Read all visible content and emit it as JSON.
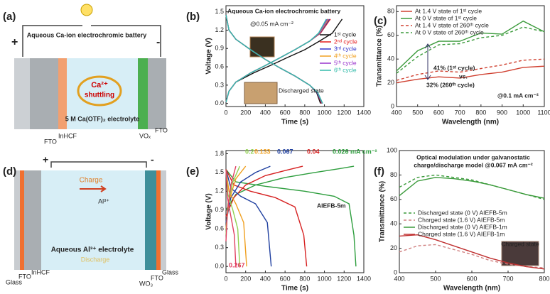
{
  "panel_labels": [
    "(a)",
    "(b)",
    "(c)",
    "(d)",
    "(e)",
    "(f)"
  ],
  "diagrams": {
    "a": {
      "title": "Aqueous Ca-ion electrochromic battery",
      "plus": "+",
      "minus": "-",
      "ion": "Ca²⁺",
      "motion": "shuttling",
      "electrolyte": "5 M Ca(OTF)₂ electrolyte",
      "layers": [
        "FTO",
        "InHCF",
        "VOₓ",
        "FTO"
      ]
    },
    "d": {
      "plus": "+",
      "minus": "-",
      "charge": "Charge",
      "ion": "Al³⁺",
      "electrolyte": "Aqueous Al³⁺ electrolyte",
      "discharge": "Discharge",
      "layers": [
        "Glass",
        "FTO",
        "InHCF",
        "WO₃",
        "FTO",
        "Glass"
      ]
    }
  },
  "chart_data": [
    {
      "type": "line",
      "x_label": "Time (s)",
      "y_label": "Voltage (V)",
      "xlim": [
        0,
        1400
      ],
      "xticks": [
        0,
        200,
        400,
        600,
        800,
        1000,
        1200,
        1400
      ],
      "ylim": [
        -0.05,
        1.6
      ],
      "yticks": [
        {
          "value": 0,
          "label": "0.0"
        },
        0.3,
        0.6,
        0.9,
        1.2,
        1.5
      ],
      "legend": "center-right",
      "annotations": [
        "Aqueous Ca-ion electrochromic battery",
        "@0.05 mA cm⁻²",
        "Discharged state"
      ],
      "series": [
        {
          "name": "1ˢᵗ cycle",
          "color": "#111111",
          "charge": {
            "x": [
              0,
              30,
              100,
              280,
              450,
              620,
              800,
              950,
              1080,
              1180
            ],
            "values": [
              0.02,
              0.2,
              0.35,
              0.5,
              0.62,
              0.75,
              0.88,
              1.02,
              1.15,
              1.38
            ]
          },
          "discharge": {
            "x": [
              0,
              30,
              100,
              250,
              400,
              550,
              700,
              850,
              920,
              960
            ],
            "values": [
              1.45,
              1.2,
              1.05,
              0.88,
              0.72,
              0.58,
              0.45,
              0.3,
              0.18,
              0.0
            ]
          }
        },
        {
          "name": "2ⁿᵈ cycle",
          "color": "#e41a1c",
          "charge": {
            "x": [
              0,
              30,
              100,
              250,
              400,
              550,
              700,
              850,
              960,
              1060
            ],
            "values": [
              0.02,
              0.2,
              0.35,
              0.5,
              0.62,
              0.75,
              0.88,
              1.02,
              1.15,
              1.38
            ]
          },
          "discharge": {
            "x": [
              0,
              30,
              100,
              250,
              400,
              550,
              700,
              850,
              925,
              970
            ],
            "values": [
              1.45,
              1.2,
              1.05,
              0.88,
              0.72,
              0.58,
              0.45,
              0.3,
              0.18,
              0.0
            ]
          }
        },
        {
          "name": "3ʳᵈ cycle",
          "color": "#3333cc",
          "charge": {
            "x": [
              0,
              30,
              100,
              250,
              400,
              550,
              700,
              850,
              955,
              1050
            ],
            "values": [
              0.02,
              0.2,
              0.35,
              0.5,
              0.62,
              0.75,
              0.88,
              1.02,
              1.15,
              1.38
            ]
          },
          "discharge": {
            "x": [
              0,
              30,
              100,
              250,
              400,
              550,
              700,
              850,
              925,
              975
            ],
            "values": [
              1.45,
              1.2,
              1.05,
              0.88,
              0.72,
              0.58,
              0.45,
              0.3,
              0.18,
              0.0
            ]
          }
        },
        {
          "name": "4ᵗʰ cycle",
          "color": "#f0a020",
          "charge": {
            "x": [
              0,
              30,
              100,
              250,
              400,
              550,
              700,
              850,
              950,
              1040
            ],
            "values": [
              0.02,
              0.2,
              0.35,
              0.5,
              0.62,
              0.75,
              0.88,
              1.02,
              1.15,
              1.38
            ]
          },
          "discharge": {
            "x": [
              0,
              30,
              100,
              250,
              400,
              550,
              700,
              850,
              930,
              978
            ],
            "values": [
              1.45,
              1.2,
              1.05,
              0.88,
              0.72,
              0.58,
              0.45,
              0.3,
              0.18,
              0.0
            ]
          }
        },
        {
          "name": "5ᵗʰ cycle",
          "color": "#9933cc",
          "charge": {
            "x": [
              0,
              30,
              100,
              250,
              400,
              550,
              700,
              850,
              945,
              1030
            ],
            "values": [
              0.02,
              0.2,
              0.35,
              0.5,
              0.62,
              0.75,
              0.88,
              1.02,
              1.15,
              1.38
            ]
          },
          "discharge": {
            "x": [
              0,
              30,
              100,
              250,
              400,
              550,
              700,
              850,
              930,
              980
            ],
            "values": [
              1.45,
              1.2,
              1.05,
              0.88,
              0.72,
              0.58,
              0.45,
              0.3,
              0.18,
              0.0
            ]
          }
        },
        {
          "name": "6ᵗʰ cycle",
          "color": "#33bbaa",
          "charge": {
            "x": [
              0,
              30,
              100,
              250,
              400,
              550,
              700,
              850,
              940,
              1020
            ],
            "values": [
              0.02,
              0.2,
              0.35,
              0.5,
              0.62,
              0.75,
              0.88,
              1.02,
              1.15,
              1.38
            ]
          },
          "discharge": {
            "x": [
              0,
              30,
              100,
              250,
              400,
              550,
              700,
              850,
              932,
              982
            ],
            "values": [
              1.45,
              1.2,
              1.05,
              0.88,
              0.72,
              0.58,
              0.45,
              0.3,
              0.18,
              0.0
            ]
          }
        }
      ]
    },
    {
      "type": "line",
      "x_label": "Wavelength (nm)",
      "y_label": "Transmittance (%)",
      "xlim": [
        400,
        1100
      ],
      "xticks": [
        400,
        500,
        600,
        700,
        800,
        900,
        1000,
        1100
      ],
      "ylim": [
        0,
        85
      ],
      "yticks": [
        0,
        20,
        40,
        60,
        80
      ],
      "legend": "top-left",
      "annotations": [
        "41% (1ˢᵗ cycle)",
        "vs.",
        "32% (260ᵗʰ cycle)",
        "@0.1 mA cm⁻²"
      ],
      "x": [
        400,
        500,
        600,
        700,
        800,
        900,
        1000,
        1100
      ],
      "series": [
        {
          "name": "At 1.4 V state of 1ˢᵗ cycle",
          "color": "#d04030",
          "dash": false,
          "values": [
            20,
            23,
            25,
            24,
            27,
            29,
            33,
            34
          ]
        },
        {
          "name": "At 0 V state of 1ˢᵗ cycle",
          "color": "#3a9a3a",
          "dash": false,
          "values": [
            30,
            47,
            55,
            55,
            62,
            61,
            72,
            63
          ]
        },
        {
          "name": "At 1.4 V state of 260ᵗʰ cycle",
          "color": "#d04030",
          "dash": true,
          "values": [
            22,
            27,
            30,
            29,
            32,
            35,
            39,
            40
          ]
        },
        {
          "name": "At 0 V state of 260ᵗʰ cycle",
          "color": "#3a9a3a",
          "dash": true,
          "values": [
            28,
            42,
            52,
            53,
            58,
            60,
            67,
            63
          ]
        }
      ]
    },
    {
      "type": "line",
      "x_label": "Time (s)",
      "y_label": "Voltage (V)",
      "xlim": [
        0,
        1400
      ],
      "xticks": [
        0,
        200,
        400,
        600,
        800,
        1000,
        1200,
        1400
      ],
      "ylim": [
        -0.1,
        1.85
      ],
      "yticks": [
        {
          "value": 0,
          "label": "0.0"
        },
        0.3,
        0.6,
        0.9,
        1.2,
        1.5,
        1.8
      ],
      "legend": "inline",
      "annotations": [
        "AIEFB-5m"
      ],
      "series": [
        {
          "name": "0.026 mA cm⁻²",
          "color": "#2e9e3e",
          "charge": {
            "x": [
              0,
              100,
              300,
              600,
              900,
              1150,
              1300
            ],
            "values": [
              0.9,
              1.15,
              1.3,
              1.42,
              1.5,
              1.56,
              1.6
            ]
          },
          "discharge": {
            "x": [
              0,
              100,
              400,
              800,
              1100,
              1250,
              1300,
              1320
            ],
            "values": [
              1.55,
              1.35,
              1.28,
              1.2,
              1.12,
              1.0,
              0.5,
              0.0
            ]
          }
        },
        {
          "name": "0.04",
          "color": "#d62020",
          "charge": {
            "x": [
              0,
              80,
              200,
              400,
              600,
              780
            ],
            "values": [
              0.8,
              1.1,
              1.3,
              1.45,
              1.53,
              1.6
            ]
          },
          "discharge": {
            "x": [
              0,
              80,
              250,
              500,
              700,
              790,
              820
            ],
            "values": [
              1.55,
              1.3,
              1.2,
              1.1,
              0.95,
              0.5,
              0.0
            ]
          }
        },
        {
          "name": "0.067",
          "color": "#2040a0",
          "charge": {
            "x": [
              0,
              50,
              150,
              300,
              450
            ],
            "values": [
              0.7,
              1.1,
              1.35,
              1.5,
              1.6
            ]
          },
          "discharge": {
            "x": [
              0,
              50,
              150,
              300,
              420,
              460
            ],
            "values": [
              1.55,
              1.25,
              1.12,
              1.0,
              0.7,
              0.0
            ]
          }
        },
        {
          "name": "0.133",
          "color": "#f0a020",
          "charge": {
            "x": [
              0,
              30,
              100,
              200
            ],
            "values": [
              0.6,
              1.05,
              1.4,
              1.6
            ]
          },
          "discharge": {
            "x": [
              0,
              30,
              100,
              180,
              210
            ],
            "values": [
              1.55,
              1.2,
              1.0,
              0.7,
              0.0
            ]
          }
        },
        {
          "name": "0.2",
          "color": "#90d050",
          "charge": {
            "x": [
              0,
              20,
              70,
              140
            ],
            "values": [
              0.5,
              1.0,
              1.35,
              1.6
            ]
          },
          "discharge": {
            "x": [
              0,
              20,
              70,
              120,
              140
            ],
            "values": [
              1.55,
              1.15,
              0.9,
              0.6,
              0.0
            ]
          }
        },
        {
          "name": "0.267",
          "color": "#e04060",
          "charge": {
            "x": [
              0,
              15,
              50,
              100
            ],
            "values": [
              0.4,
              0.9,
              1.3,
              1.6
            ]
          },
          "discharge": {
            "x": [
              0,
              15,
              50,
              85,
              100
            ],
            "values": [
              1.55,
              1.1,
              0.8,
              0.5,
              0.0
            ]
          }
        }
      ]
    },
    {
      "type": "line",
      "x_label": "Wavelength (nm)",
      "y_label": "Transmittance (%)",
      "xlim": [
        400,
        800
      ],
      "xticks": [
        400,
        500,
        600,
        700,
        800
      ],
      "ylim": [
        0,
        100
      ],
      "yticks": [
        0,
        20,
        40,
        60,
        80,
        100
      ],
      "legend": "center-left",
      "annotations": [
        "Optical modulation under galvanostatic",
        "charge/discharge model @0.067 mA cm⁻²",
        "Charged state"
      ],
      "x": [
        400,
        450,
        500,
        550,
        600,
        650,
        700,
        750,
        800
      ],
      "series": [
        {
          "name": "Discharged state (0 V) AIEFB-5m",
          "color": "#3a9a3a",
          "dash": true,
          "values": [
            70,
            78,
            80,
            78,
            76,
            72,
            68,
            64,
            60
          ]
        },
        {
          "name": "Charged state (1.6 V) AIEFB-5m",
          "color": "#d08080",
          "dash": true,
          "values": [
            17,
            22,
            23,
            19,
            15,
            10,
            7,
            5,
            4
          ]
        },
        {
          "name": "Discharged state (0 V) AIEFB-1m",
          "color": "#3a9a3a",
          "dash": false,
          "values": [
            63,
            75,
            78,
            77,
            75,
            72,
            68,
            64,
            61
          ]
        },
        {
          "name": "Charged state (1.6 V) AIEFB-1m",
          "color": "#c03030",
          "dash": false,
          "values": [
            30,
            31,
            27,
            22,
            17,
            12,
            8,
            5,
            3
          ]
        }
      ]
    }
  ]
}
